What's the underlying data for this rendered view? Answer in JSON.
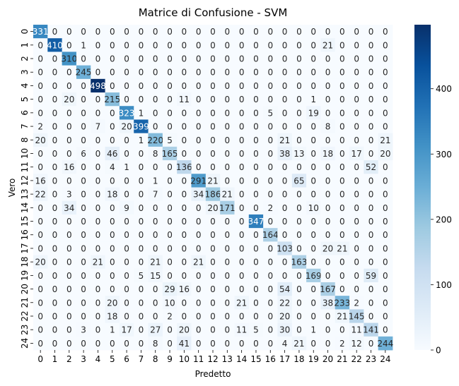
{
  "chart_data": {
    "type": "heatmap",
    "title": "Matrice di Confusione - SVM",
    "xlabel": "Predetto",
    "ylabel": "Vero",
    "x_categories": [
      "0",
      "1",
      "2",
      "3",
      "4",
      "5",
      "6",
      "7",
      "8",
      "9",
      "10",
      "11",
      "12",
      "13",
      "14",
      "15",
      "16",
      "17",
      "18",
      "19",
      "20",
      "21",
      "22",
      "23",
      "24"
    ],
    "y_categories": [
      "0",
      "1",
      "2",
      "3",
      "4",
      "5",
      "6",
      "7",
      "8",
      "10",
      "11",
      "12",
      "13",
      "14",
      "15",
      "16",
      "17",
      "18",
      "19",
      "20",
      "21",
      "22",
      "23",
      "24"
    ],
    "matrix": [
      [
        331,
        0,
        0,
        0,
        0,
        0,
        0,
        0,
        0,
        0,
        0,
        0,
        0,
        0,
        0,
        0,
        0,
        0,
        0,
        0,
        0,
        0,
        0,
        0,
        0
      ],
      [
        0,
        410,
        0,
        1,
        0,
        0,
        0,
        0,
        0,
        0,
        0,
        0,
        0,
        0,
        0,
        0,
        0,
        0,
        0,
        0,
        21,
        0,
        0,
        0,
        0
      ],
      [
        0,
        0,
        310,
        0,
        0,
        0,
        0,
        0,
        0,
        0,
        0,
        0,
        0,
        0,
        0,
        0,
        0,
        0,
        0,
        0,
        0,
        0,
        0,
        0,
        0
      ],
      [
        0,
        0,
        0,
        245,
        0,
        0,
        0,
        0,
        0,
        0,
        0,
        0,
        0,
        0,
        0,
        0,
        0,
        0,
        0,
        0,
        0,
        0,
        0,
        0,
        0
      ],
      [
        0,
        0,
        0,
        0,
        498,
        0,
        0,
        0,
        0,
        0,
        0,
        0,
        0,
        0,
        0,
        0,
        0,
        0,
        0,
        0,
        0,
        0,
        0,
        0,
        0
      ],
      [
        0,
        0,
        20,
        0,
        0,
        215,
        0,
        0,
        0,
        0,
        11,
        0,
        0,
        0,
        0,
        0,
        0,
        0,
        0,
        1,
        0,
        0,
        0,
        0,
        0
      ],
      [
        0,
        0,
        0,
        0,
        0,
        0,
        323,
        1,
        0,
        0,
        0,
        0,
        0,
        0,
        0,
        0,
        5,
        0,
        0,
        19,
        0,
        0,
        0,
        0,
        0
      ],
      [
        2,
        0,
        0,
        0,
        7,
        0,
        20,
        399,
        0,
        0,
        0,
        0,
        0,
        0,
        0,
        0,
        0,
        0,
        0,
        0,
        8,
        0,
        0,
        0,
        0
      ],
      [
        20,
        0,
        0,
        0,
        0,
        0,
        0,
        1,
        220,
        5,
        0,
        0,
        0,
        0,
        0,
        0,
        0,
        21,
        0,
        0,
        0,
        0,
        0,
        0,
        21
      ],
      [
        0,
        0,
        0,
        6,
        0,
        46,
        0,
        0,
        8,
        165,
        0,
        0,
        0,
        0,
        0,
        0,
        0,
        38,
        13,
        0,
        18,
        0,
        17,
        0,
        20
      ],
      [
        0,
        0,
        16,
        0,
        0,
        4,
        1,
        0,
        0,
        0,
        136,
        0,
        0,
        0,
        0,
        0,
        0,
        0,
        0,
        0,
        0,
        0,
        0,
        52,
        0
      ],
      [
        16,
        0,
        0,
        0,
        0,
        0,
        0,
        0,
        1,
        0,
        0,
        291,
        21,
        0,
        0,
        0,
        0,
        0,
        65,
        0,
        0,
        0,
        0,
        0,
        0
      ],
      [
        22,
        0,
        3,
        0,
        0,
        18,
        0,
        0,
        7,
        0,
        0,
        34,
        186,
        21,
        0,
        0,
        0,
        0,
        0,
        0,
        0,
        0,
        0,
        0,
        0
      ],
      [
        0,
        0,
        34,
        0,
        0,
        0,
        9,
        0,
        0,
        0,
        0,
        0,
        20,
        171,
        0,
        0,
        2,
        0,
        0,
        10,
        0,
        0,
        0,
        0,
        0
      ],
      [
        0,
        0,
        0,
        0,
        0,
        0,
        0,
        0,
        0,
        0,
        0,
        0,
        0,
        0,
        0,
        347,
        0,
        0,
        0,
        0,
        0,
        0,
        0,
        0,
        0
      ],
      [
        0,
        0,
        0,
        0,
        0,
        0,
        0,
        0,
        0,
        0,
        0,
        0,
        0,
        0,
        0,
        0,
        164,
        0,
        0,
        0,
        0,
        0,
        0,
        0,
        0
      ],
      [
        0,
        0,
        0,
        0,
        0,
        0,
        0,
        0,
        0,
        0,
        0,
        0,
        0,
        0,
        0,
        0,
        0,
        103,
        0,
        0,
        20,
        21,
        0,
        0,
        0
      ],
      [
        20,
        0,
        0,
        0,
        21,
        0,
        0,
        0,
        21,
        0,
        0,
        21,
        0,
        0,
        0,
        0,
        0,
        0,
        163,
        0,
        0,
        0,
        0,
        0,
        0
      ],
      [
        0,
        0,
        0,
        0,
        0,
        0,
        0,
        5,
        15,
        0,
        0,
        0,
        0,
        0,
        0,
        0,
        0,
        0,
        0,
        169,
        0,
        0,
        0,
        59,
        0
      ],
      [
        0,
        0,
        0,
        0,
        0,
        0,
        0,
        0,
        0,
        29,
        16,
        0,
        0,
        0,
        0,
        0,
        0,
        54,
        0,
        0,
        167,
        0,
        0,
        0,
        0
      ],
      [
        0,
        0,
        0,
        0,
        0,
        20,
        0,
        0,
        0,
        10,
        0,
        0,
        0,
        0,
        21,
        0,
        0,
        22,
        0,
        0,
        38,
        233,
        2,
        0,
        0
      ],
      [
        0,
        0,
        0,
        0,
        0,
        18,
        0,
        0,
        0,
        2,
        0,
        0,
        0,
        0,
        0,
        0,
        0,
        20,
        0,
        0,
        0,
        21,
        145,
        0,
        0
      ],
      [
        0,
        0,
        0,
        3,
        0,
        1,
        17,
        0,
        27,
        0,
        20,
        0,
        0,
        0,
        11,
        5,
        0,
        30,
        0,
        1,
        0,
        0,
        11,
        141,
        0
      ],
      [
        0,
        0,
        0,
        0,
        0,
        0,
        0,
        0,
        8,
        0,
        41,
        0,
        0,
        0,
        0,
        0,
        0,
        4,
        21,
        0,
        0,
        2,
        12,
        0,
        244
      ]
    ],
    "zlim": [
      0,
      498
    ],
    "colorbar_ticks": [
      0,
      100,
      200,
      300,
      400
    ],
    "colormap": "Blues",
    "colors": {
      "low": "#f7fbff",
      "high": "#08306b"
    },
    "annotations": true
  }
}
